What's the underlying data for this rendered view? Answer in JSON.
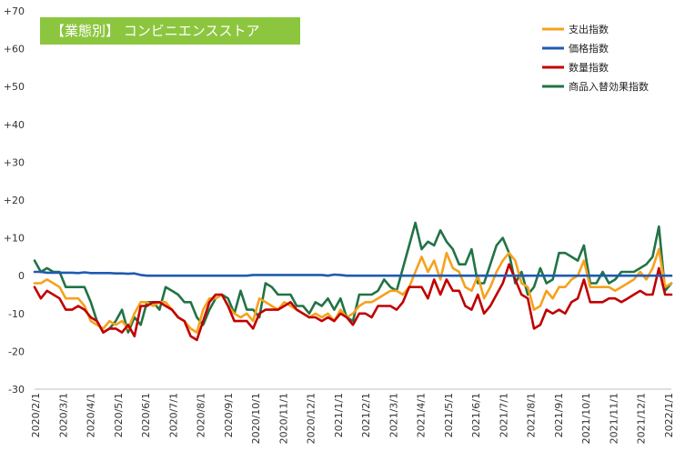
{
  "chart_data": {
    "type": "line",
    "title": "【業態別】 コンビニエンスストア",
    "title_bg_color": "#8cc63f",
    "ylim": [
      -30,
      70
    ],
    "yticks": [
      70,
      60,
      50,
      40,
      30,
      20,
      10,
      0,
      -10,
      -20,
      -30
    ],
    "ytick_labels": [
      "+70",
      "+60",
      "+50",
      "+40",
      "+30",
      "+20",
      "+10",
      "0",
      "-10",
      "-20",
      "-30"
    ],
    "x_tick_labels": [
      "2020/2/1",
      "2020/3/1",
      "2020/4/1",
      "2020/5/1",
      "2020/6/1",
      "2020/7/1",
      "2020/8/1",
      "2020/9/1",
      "2020/10/1",
      "2020/11/1",
      "2020/12/1",
      "2021/1/1",
      "2021/2/1",
      "2021/3/1",
      "2021/4/1",
      "2021/5/1",
      "2021/6/1",
      "2021/7/1",
      "2021/8/1",
      "2021/9/1",
      "2021/10/1",
      "2021/11/1",
      "2021/12/1",
      "2022/1/1"
    ],
    "grid": false,
    "legend_position": "top-right",
    "series": [
      {
        "name": "支出指数",
        "color": "#f5a21b",
        "values": [
          -2,
          -2,
          -1,
          -2,
          -3,
          -6,
          -6,
          -6,
          -8,
          -12,
          -13,
          -14,
          -12,
          -13,
          -12,
          -14,
          -10,
          -7,
          -7,
          -8,
          -7,
          -7,
          -9,
          -11,
          -12,
          -14,
          -15,
          -9,
          -6,
          -6,
          -5,
          -8,
          -10,
          -11,
          -10,
          -12,
          -6,
          -7,
          -8,
          -9,
          -7,
          -8,
          -9,
          -10,
          -11,
          -10,
          -11,
          -10,
          -12,
          -9,
          -11,
          -10,
          -8,
          -7,
          -7,
          -6,
          -5,
          -4,
          -4,
          -5,
          -3,
          1,
          5,
          1,
          4,
          -1,
          6,
          2,
          1,
          -3,
          -4,
          0,
          -6,
          -3,
          1,
          4,
          6,
          4,
          -2,
          -3,
          -9,
          -8,
          -4,
          -6,
          -3,
          -3,
          -1,
          0,
          4,
          -3,
          -3,
          -3,
          -3,
          -4,
          -3,
          -2,
          -1,
          1,
          -1,
          2,
          7,
          -3,
          -2
        ],
        "start_index": 0
      },
      {
        "name": "価格指数",
        "color": "#1f5bb0",
        "values": [
          1,
          1,
          0.8,
          0.8,
          0.8,
          0.8,
          0.8,
          0.7,
          0.9,
          0.7,
          0.7,
          0.7,
          0.7,
          0.6,
          0.6,
          0.5,
          0.6,
          0.2,
          0,
          0,
          0,
          0,
          0,
          0,
          0,
          0,
          0,
          0,
          0,
          0,
          0,
          0,
          0,
          0,
          0,
          0.2,
          0.2,
          0.2,
          0.2,
          0.2,
          0.2,
          0.2,
          0.2,
          0.2,
          0.2,
          0.2,
          0.2,
          0,
          0.3,
          0.2,
          0,
          0,
          0,
          0,
          0,
          0,
          0,
          0,
          0,
          0,
          0,
          0,
          0,
          0,
          0,
          0,
          0,
          0,
          0,
          0,
          0,
          0,
          0,
          0,
          0,
          0,
          0,
          0,
          0,
          0,
          0,
          0,
          0,
          0,
          0,
          0,
          0,
          0,
          0,
          0,
          0,
          0,
          0,
          0,
          0,
          0,
          0,
          0,
          0,
          0,
          0,
          0,
          0
        ],
        "start_index": 0
      },
      {
        "name": "数量指数",
        "color": "#c00000",
        "values": [
          -3,
          -6,
          -4,
          -5,
          -6,
          -9,
          -9,
          -8,
          -9,
          -11,
          -12,
          -15,
          -14,
          -14,
          -15,
          -13,
          -16,
          -8,
          -8,
          -7,
          -7,
          -8,
          -9,
          -11,
          -12,
          -16,
          -17,
          -12,
          -7,
          -5,
          -5,
          -8,
          -12,
          -12,
          -12,
          -14,
          -10,
          -9,
          -9,
          -9,
          -8,
          -7,
          -9,
          -10,
          -11,
          -11,
          -12,
          -11,
          -12,
          -10,
          -11,
          -13,
          -10,
          -10,
          -11,
          -8,
          -8,
          -8,
          -9,
          -7,
          -3,
          -3,
          -3,
          -6,
          -1,
          -5,
          -1,
          -4,
          -4,
          -8,
          -9,
          -5,
          -10,
          -8,
          -5,
          -2,
          3,
          -1,
          -5,
          -6,
          -14,
          -13,
          -9,
          -10,
          -9,
          -10,
          -7,
          -6,
          -1,
          -7,
          -7,
          -7,
          -6,
          -6,
          -7,
          -6,
          -5,
          -4,
          -5,
          -5,
          2,
          -5,
          -5
        ],
        "start_index": 0
      },
      {
        "name": "商品入替効果指数",
        "color": "#217346",
        "values": [
          4,
          1,
          2,
          1,
          1,
          -3,
          -3,
          -3,
          -3,
          -7,
          -12,
          -15,
          -14,
          -12,
          -9,
          -15,
          -11,
          -13,
          -7,
          -7,
          -9,
          -3,
          -4,
          -5,
          -7,
          -7,
          -11,
          -13,
          -9,
          -6,
          -5,
          -6,
          -10,
          -4,
          -9,
          -9,
          -11,
          -2,
          -3,
          -5,
          -5,
          -5,
          -8,
          -8,
          -10,
          -7,
          -8,
          -6,
          -9,
          -6,
          -11,
          -12,
          -5,
          -5,
          -5,
          -4,
          -1,
          -3,
          -4,
          2,
          8,
          14,
          7,
          9,
          8,
          12,
          9,
          7,
          3,
          3,
          7,
          -2,
          -2,
          3,
          8,
          10,
          6,
          -2,
          1,
          -5,
          -3,
          2,
          -2,
          -1,
          6,
          6,
          5,
          4,
          8,
          -2,
          -2,
          1,
          -2,
          -1,
          1,
          1,
          1,
          2,
          3,
          5,
          13,
          -4,
          -2
        ],
        "start_index": 0
      }
    ]
  }
}
